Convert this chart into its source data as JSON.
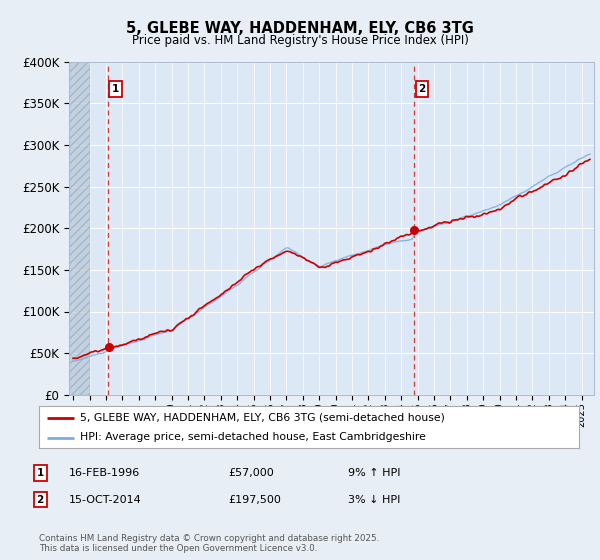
{
  "title": "5, GLEBE WAY, HADDENHAM, ELY, CB6 3TG",
  "subtitle": "Price paid vs. HM Land Registry's House Price Index (HPI)",
  "ylim": [
    0,
    400000
  ],
  "yticks": [
    0,
    50000,
    100000,
    150000,
    200000,
    250000,
    300000,
    350000,
    400000
  ],
  "ytick_labels": [
    "£0",
    "£50K",
    "£100K",
    "£150K",
    "£200K",
    "£250K",
    "£300K",
    "£350K",
    "£400K"
  ],
  "xlim_start": 1993.75,
  "xlim_end": 2025.75,
  "hatch_end": 1995.0,
  "bg_color": "#e8eef5",
  "plot_bg_color": "#dce8f5",
  "grid_color": "#ffffff",
  "transaction1_x": 1996.12,
  "transaction1_y": 57000,
  "transaction1_label": "1",
  "transaction1_date": "16-FEB-1996",
  "transaction1_price": "£57,000",
  "transaction1_hpi": "9% ↑ HPI",
  "transaction2_x": 2014.79,
  "transaction2_y": 197500,
  "transaction2_label": "2",
  "transaction2_date": "15-OCT-2014",
  "transaction2_price": "£197,500",
  "transaction2_hpi": "3% ↓ HPI",
  "legend_line1": "5, GLEBE WAY, HADDENHAM, ELY, CB6 3TG (semi-detached house)",
  "legend_line2": "HPI: Average price, semi-detached house, East Cambridgeshire",
  "footer": "Contains HM Land Registry data © Crown copyright and database right 2025.\nThis data is licensed under the Open Government Licence v3.0.",
  "red_line_color": "#cc0000",
  "blue_line_color": "#80aadd",
  "annotation_box_color": "#cc0000"
}
